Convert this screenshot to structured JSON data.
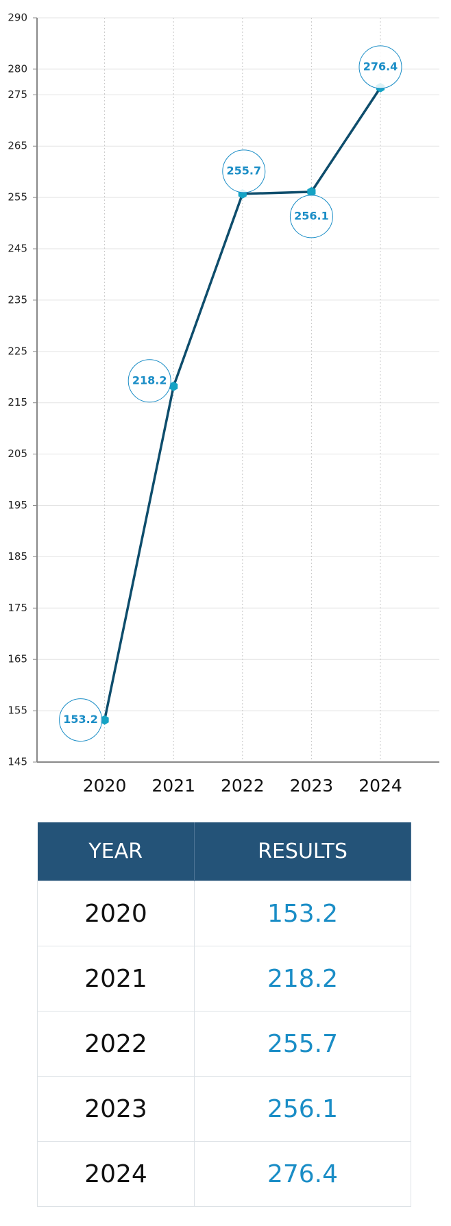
{
  "chart_data": {
    "type": "line",
    "categories": [
      "2020",
      "2021",
      "2022",
      "2023",
      "2024"
    ],
    "values": [
      153.2,
      218.2,
      255.7,
      256.1,
      276.4
    ],
    "color": "#0e4d6c",
    "marker_color": "#15a3c4",
    "label_color": "#1a8dc6",
    "ylim": [
      145,
      290
    ],
    "yticks": [
      290,
      280,
      275,
      265,
      255,
      245,
      235,
      225,
      215,
      205,
      195,
      185,
      175,
      165,
      155,
      145
    ],
    "grid": true
  },
  "table": {
    "header": [
      "YEAR",
      "RESULTS"
    ],
    "rows": [
      [
        "2020",
        "153.2"
      ],
      [
        "2021",
        "218.2"
      ],
      [
        "2022",
        "255.7"
      ],
      [
        "2023",
        "256.1"
      ],
      [
        "2024",
        "276.4"
      ]
    ]
  }
}
